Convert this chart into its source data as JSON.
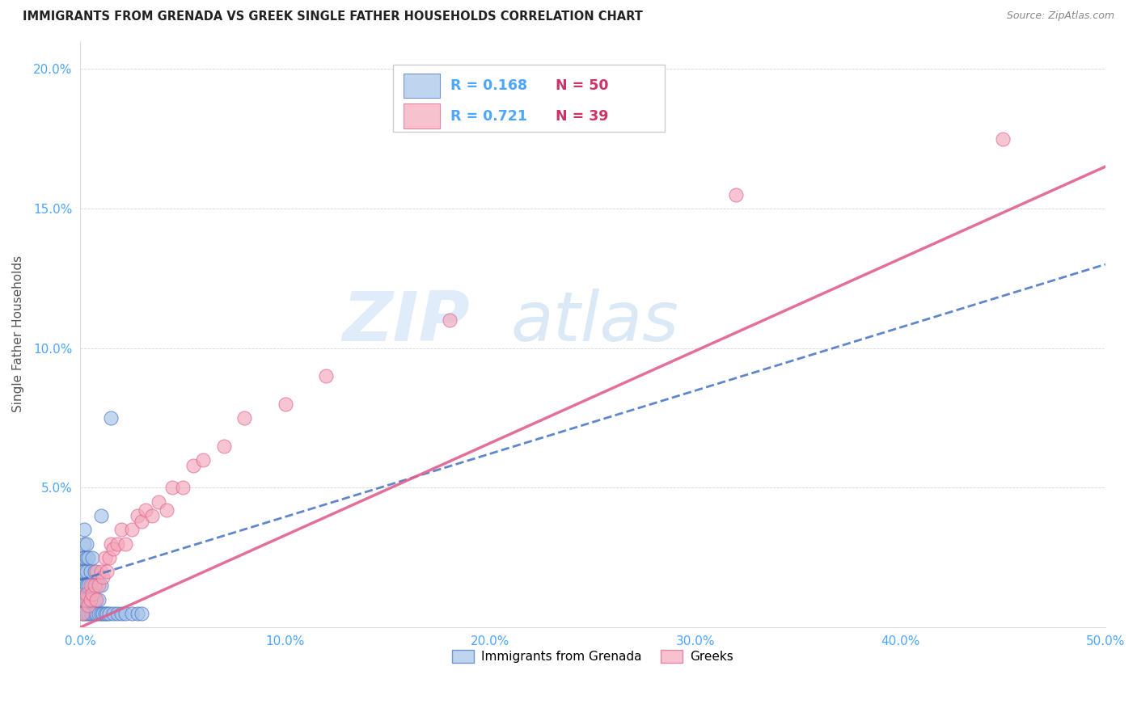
{
  "title": "IMMIGRANTS FROM GRENADA VS GREEK SINGLE FATHER HOUSEHOLDS CORRELATION CHART",
  "source": "Source: ZipAtlas.com",
  "ylabel": "Single Father Households",
  "xlim": [
    0.0,
    0.5
  ],
  "ylim": [
    0.0,
    0.21
  ],
  "xticks": [
    0.0,
    0.1,
    0.2,
    0.3,
    0.4,
    0.5
  ],
  "yticks": [
    0.0,
    0.05,
    0.1,
    0.15,
    0.2
  ],
  "xticklabels": [
    "0.0%",
    "10.0%",
    "20.0%",
    "30.0%",
    "40.0%",
    "50.0%"
  ],
  "yticklabels": [
    "",
    "5.0%",
    "10.0%",
    "15.0%",
    "20.0%"
  ],
  "blue_color": "#a4c2e8",
  "pink_color": "#f4a7b9",
  "blue_line_color": "#4472c4",
  "pink_line_color": "#e06090",
  "blue_r_color": "#4da6ff",
  "pink_r_color": "#e06090",
  "n_color": "#cc3366",
  "blue_x": [
    0.001,
    0.001,
    0.001,
    0.001,
    0.001,
    0.002,
    0.002,
    0.002,
    0.002,
    0.002,
    0.002,
    0.002,
    0.003,
    0.003,
    0.003,
    0.003,
    0.003,
    0.003,
    0.004,
    0.004,
    0.004,
    0.004,
    0.005,
    0.005,
    0.005,
    0.006,
    0.006,
    0.006,
    0.007,
    0.007,
    0.007,
    0.008,
    0.008,
    0.009,
    0.009,
    0.01,
    0.01,
    0.011,
    0.012,
    0.013,
    0.014,
    0.016,
    0.018,
    0.02,
    0.022,
    0.025,
    0.028,
    0.03,
    0.015,
    0.01
  ],
  "blue_y": [
    0.005,
    0.01,
    0.015,
    0.02,
    0.025,
    0.005,
    0.01,
    0.015,
    0.02,
    0.025,
    0.03,
    0.035,
    0.005,
    0.01,
    0.015,
    0.02,
    0.025,
    0.03,
    0.005,
    0.01,
    0.015,
    0.025,
    0.005,
    0.01,
    0.02,
    0.005,
    0.015,
    0.025,
    0.005,
    0.01,
    0.02,
    0.005,
    0.015,
    0.005,
    0.01,
    0.005,
    0.015,
    0.005,
    0.005,
    0.005,
    0.005,
    0.005,
    0.005,
    0.005,
    0.005,
    0.005,
    0.005,
    0.005,
    0.075,
    0.04
  ],
  "pink_x": [
    0.001,
    0.002,
    0.003,
    0.004,
    0.005,
    0.005,
    0.006,
    0.007,
    0.008,
    0.008,
    0.009,
    0.01,
    0.011,
    0.012,
    0.013,
    0.014,
    0.015,
    0.016,
    0.018,
    0.02,
    0.022,
    0.025,
    0.028,
    0.03,
    0.032,
    0.035,
    0.038,
    0.042,
    0.045,
    0.05,
    0.055,
    0.06,
    0.07,
    0.08,
    0.1,
    0.12,
    0.18,
    0.32,
    0.45
  ],
  "pink_y": [
    0.005,
    0.01,
    0.012,
    0.008,
    0.01,
    0.015,
    0.012,
    0.015,
    0.01,
    0.02,
    0.015,
    0.02,
    0.018,
    0.025,
    0.02,
    0.025,
    0.03,
    0.028,
    0.03,
    0.035,
    0.03,
    0.035,
    0.04,
    0.038,
    0.042,
    0.04,
    0.045,
    0.042,
    0.05,
    0.05,
    0.058,
    0.06,
    0.065,
    0.075,
    0.08,
    0.09,
    0.11,
    0.155,
    0.175
  ],
  "blue_line_x": [
    0.0,
    0.5
  ],
  "blue_line_y": [
    0.017,
    0.13
  ],
  "pink_line_x": [
    0.0,
    0.5
  ],
  "pink_line_y": [
    0.0,
    0.165
  ]
}
